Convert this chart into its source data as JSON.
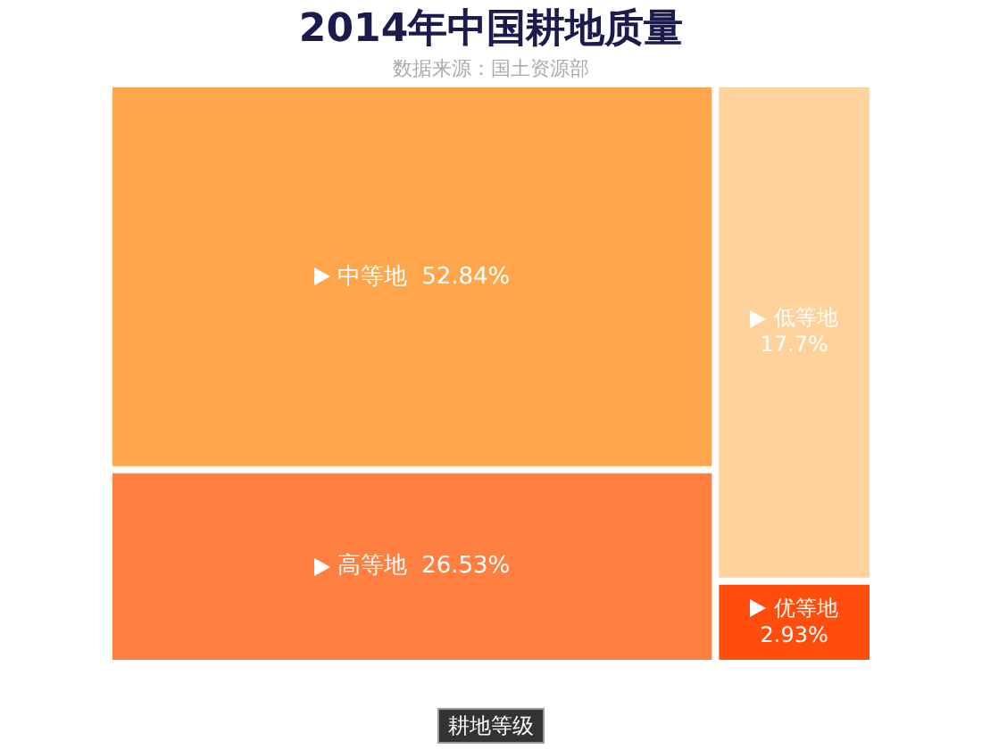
{
  "chart_data": {
    "type": "other",
    "title": "2014年中国耕地质量",
    "subtitle": "数据来源：国土资源部",
    "categories": [
      "中等地",
      "高等地",
      "低等地",
      "优等地"
    ],
    "values": [
      52.84,
      26.53,
      17.7,
      2.93
    ],
    "value_labels": [
      "52.84%",
      "26.53%",
      "17.7%",
      "2.93%"
    ],
    "colors": [
      "#ffa64d",
      "#ff7f40",
      "#ffd29b",
      "#ff4d0d"
    ],
    "annotations": [
      "耕地等级"
    ]
  }
}
